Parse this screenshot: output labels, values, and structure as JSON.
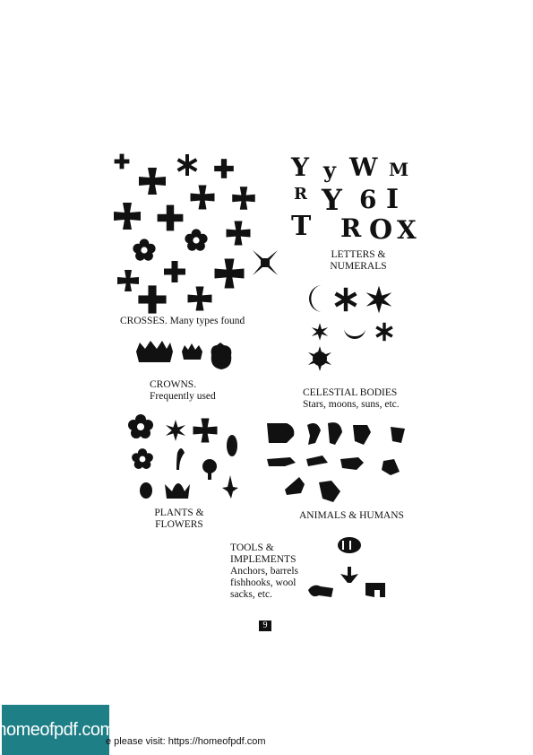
{
  "captions": {
    "crosses": "CROSSES. Many types found",
    "letters": [
      "LETTERS &",
      "NUMERALS"
    ],
    "crowns": [
      "CROWNS.",
      "Frequently used"
    ],
    "celestial": [
      "CELESTIAL BODIES",
      "Stars, moons, suns, etc."
    ],
    "plants": [
      "PLANTS &",
      "FLOWERS"
    ],
    "animals": "ANIMALS & HUMANS",
    "tools": [
      "TOOLS &",
      "IMPLEMENTS",
      "Anchors, barrels",
      "fishhooks, wool",
      "sacks, etc."
    ]
  },
  "letter_marks": [
    "Y",
    "y",
    "W",
    "M",
    "R",
    "Y",
    "6",
    "I",
    "T",
    "R",
    "O",
    "X"
  ],
  "page_number": "9",
  "footer": {
    "logo_text": "homeofpdf.com",
    "visit_text": "e please visit: https://homeofpdf.com"
  }
}
